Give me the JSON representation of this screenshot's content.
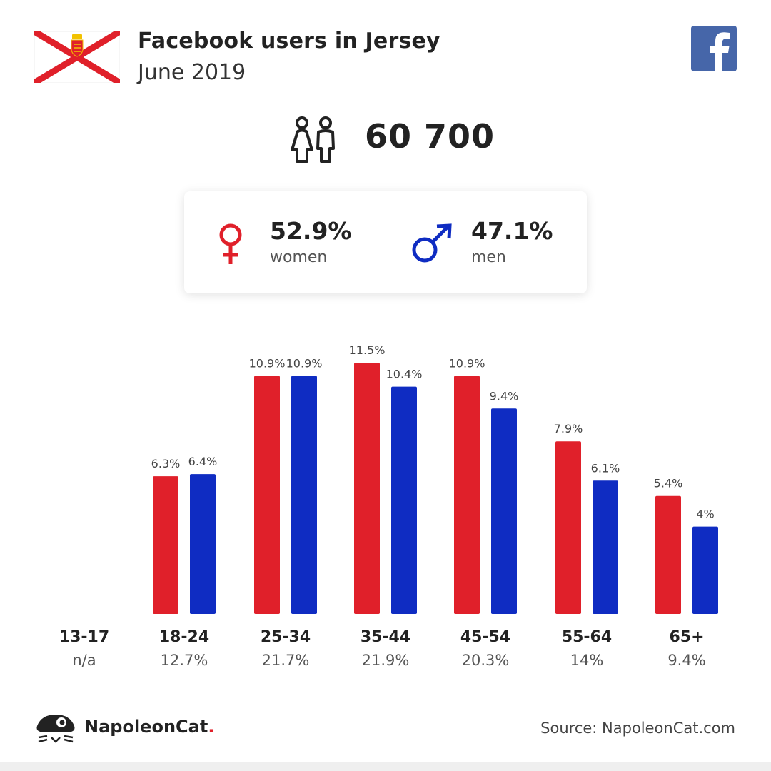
{
  "header": {
    "title": "Facebook users in Jersey",
    "subtitle": "June 2019"
  },
  "total_users": "60 700",
  "gender": {
    "women": {
      "pct": "52.9%",
      "label": "women"
    },
    "men": {
      "pct": "47.1%",
      "label": "men"
    }
  },
  "colors": {
    "women": "#e0202a",
    "men": "#0f2cc2",
    "flag_cross": "#e0202a",
    "facebook": "#4666a9"
  },
  "icons": {
    "flag": "jersey-flag-icon",
    "facebook": "facebook-logo-icon",
    "users": "users-icon",
    "female": "female-symbol-icon",
    "male": "male-symbol-icon",
    "brand": "napoleoncat-logo-icon"
  },
  "chart_data": {
    "type": "bar",
    "categories": [
      "13-17",
      "18-24",
      "25-34",
      "35-44",
      "45-54",
      "55-64",
      "65+"
    ],
    "category_totals": [
      "n/a",
      "12.7%",
      "21.7%",
      "21.9%",
      "20.3%",
      "14%",
      "9.4%"
    ],
    "series": [
      {
        "key": "women",
        "values": [
          null,
          6.3,
          10.9,
          11.5,
          10.9,
          7.9,
          5.4
        ],
        "labels": [
          "",
          "6.3%",
          "10.9%",
          "11.5%",
          "10.9%",
          "7.9%",
          "5.4%"
        ]
      },
      {
        "key": "men",
        "values": [
          null,
          6.4,
          10.9,
          10.4,
          9.4,
          6.1,
          4.0
        ],
        "labels": [
          "",
          "6.4%",
          "10.9%",
          "10.4%",
          "9.4%",
          "6.1%",
          "4%"
        ]
      }
    ],
    "ylim": [
      0,
      11.5
    ],
    "grid": false,
    "legend": "none"
  },
  "footer": {
    "brand_name": "NapoleonCat",
    "brand_dot": ".",
    "source": "Source: NapoleonCat.com"
  }
}
